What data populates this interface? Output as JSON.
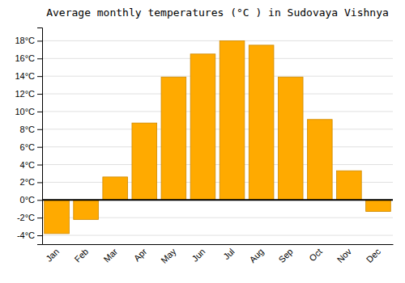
{
  "chart_data": {
    "type": "bar",
    "title": "Average monthly temperatures (°C ) in Sudovaya Vishnya",
    "categories": [
      "Jan",
      "Feb",
      "Mar",
      "Apr",
      "May",
      "Jun",
      "Jul",
      "Aug",
      "Sep",
      "Oct",
      "Nov",
      "Dec"
    ],
    "values": [
      -3.8,
      -2.2,
      2.6,
      8.7,
      13.9,
      16.5,
      18.0,
      17.5,
      13.9,
      9.1,
      3.3,
      -1.3
    ],
    "color": "#FFAA00",
    "ylim": [
      -5,
      19.5
    ],
    "yticks": [
      {
        "value": -4,
        "label": "-4°C"
      },
      {
        "value": -2,
        "label": "-2°C"
      },
      {
        "value": 0,
        "label": "0°C"
      },
      {
        "value": 2,
        "label": "2°C"
      },
      {
        "value": 4,
        "label": "4°C"
      },
      {
        "value": 6,
        "label": "6°C"
      },
      {
        "value": 8,
        "label": "8°C"
      },
      {
        "value": 10,
        "label": "10°C"
      },
      {
        "value": 12,
        "label": "12°C"
      },
      {
        "value": 14,
        "label": "14°C"
      },
      {
        "value": 16,
        "label": "16°C"
      },
      {
        "value": 18,
        "label": "18°C"
      }
    ],
    "grid": true
  }
}
